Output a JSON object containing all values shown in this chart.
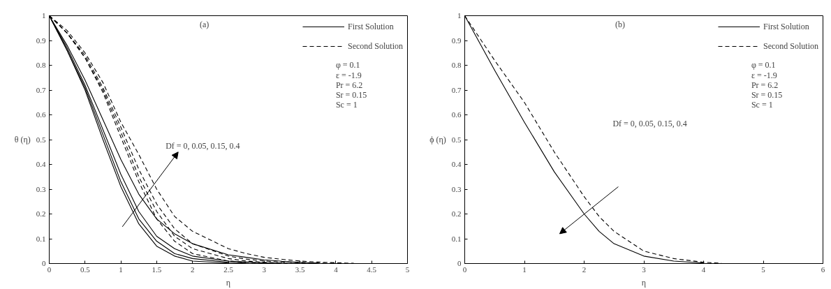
{
  "chart_data": [
    {
      "type": "line",
      "xlabel": "η",
      "ylabel": "θ (η)",
      "x": [
        0,
        0.25,
        0.5,
        0.75,
        1,
        1.25,
        1.5,
        1.75,
        2,
        2.5,
        2.75,
        3,
        3.25,
        3.5,
        3.75,
        4,
        4.25
      ],
      "xlim": [
        0,
        5
      ],
      "ylim": [
        0,
        1
      ],
      "xticks": [
        0,
        0.5,
        1,
        1.5,
        2,
        2.5,
        3,
        3.5,
        4,
        4.5,
        5
      ],
      "yticks": [
        0,
        0.1,
        0.2,
        0.3,
        0.4,
        0.5,
        0.6,
        0.7,
        0.8,
        0.9,
        1
      ],
      "grid": false,
      "legend": "top right",
      "series": [
        {
          "name": "First Solution",
          "color": "#000000",
          "line_style": "solid",
          "values": [
            1,
            0.86,
            0.7,
            0.5,
            0.31,
            0.16,
            0.07,
            0.03,
            0.01,
            0.002,
            null,
            null,
            null,
            null,
            null,
            null,
            null
          ]
        },
        {
          "color": "#000000",
          "line_style": "solid",
          "values": [
            1,
            0.86,
            0.71,
            0.52,
            0.33,
            0.18,
            0.09,
            0.04,
            0.02,
            0.005,
            0.002,
            null,
            null,
            null,
            null,
            null,
            null
          ]
        },
        {
          "color": "#000000",
          "line_style": "solid",
          "values": [
            1,
            0.87,
            0.72,
            0.54,
            0.36,
            0.21,
            0.11,
            0.06,
            0.03,
            0.01,
            0.006,
            0.003,
            0.001,
            null,
            null,
            null,
            null
          ]
        },
        {
          "color": "#000000",
          "line_style": "solid",
          "values": [
            1,
            0.88,
            0.74,
            0.58,
            0.42,
            0.28,
            0.18,
            0.12,
            0.08,
            0.035,
            0.025,
            0.015,
            0.009,
            0.005,
            0.002,
            null,
            null
          ]
        },
        {
          "name": "Second Solution",
          "color": "#000000",
          "line_style": "dashed",
          "values": [
            1,
            0.93,
            0.83,
            0.69,
            0.51,
            0.33,
            0.18,
            0.09,
            0.04,
            0.01,
            0.005,
            0.002,
            null,
            null,
            null,
            null,
            null
          ]
        },
        {
          "color": "#000000",
          "line_style": "dashed",
          "values": [
            1,
            0.93,
            0.83,
            0.7,
            0.53,
            0.35,
            0.21,
            0.11,
            0.06,
            0.02,
            0.01,
            0.005,
            0.002,
            0.001,
            null,
            null,
            null
          ]
        },
        {
          "color": "#000000",
          "line_style": "dashed",
          "values": [
            1,
            0.93,
            0.84,
            0.71,
            0.55,
            0.38,
            0.24,
            0.14,
            0.08,
            0.03,
            0.018,
            0.01,
            0.006,
            0.003,
            0.002,
            0.001,
            null
          ]
        },
        {
          "color": "#000000",
          "line_style": "dashed",
          "values": [
            1,
            0.94,
            0.85,
            0.73,
            0.57,
            0.44,
            0.3,
            0.19,
            0.13,
            0.06,
            0.04,
            0.025,
            0.017,
            0.01,
            0.006,
            0.003,
            0.001
          ]
        }
      ],
      "annotations": [
        "(a)",
        "φ = 0.1",
        "ε = -1.9",
        "Pr = 6.2",
        "Sr = 0.15",
        "Sc = 1",
        "Df = 0, 0.05, 0.15, 0.4"
      ]
    },
    {
      "type": "line",
      "xlabel": "η",
      "ylabel": "ϕ (η)",
      "x": [
        0,
        0.5,
        1,
        1.5,
        2,
        2.25,
        2.5,
        3,
        3.5,
        4,
        4.3
      ],
      "xlim": [
        0,
        6
      ],
      "ylim": [
        0,
        1
      ],
      "xticks": [
        0,
        1,
        2,
        3,
        4,
        5,
        6
      ],
      "yticks": [
        0,
        0.1,
        0.2,
        0.3,
        0.4,
        0.5,
        0.6,
        0.7,
        0.8,
        0.9,
        1
      ],
      "grid": false,
      "legend": "top right",
      "series": [
        {
          "name": "First Solution",
          "color": "#000000",
          "line_style": "solid",
          "values": [
            1,
            0.78,
            0.57,
            0.37,
            0.2,
            0.13,
            0.08,
            0.03,
            0.01,
            0.002,
            null
          ]
        },
        {
          "name": "Second Solution",
          "color": "#000000",
          "line_style": "dashed",
          "values": [
            1,
            0.82,
            0.65,
            0.45,
            0.27,
            0.19,
            0.13,
            0.05,
            0.02,
            0.005,
            0.001
          ]
        }
      ],
      "annotations": [
        "(b)",
        "φ = 0.1",
        "ε = -1.9",
        "Pr = 6.2",
        "Sr = 0.15",
        "Sc = 1",
        "Df = 0, 0.05, 0.15, 0.4"
      ]
    }
  ]
}
